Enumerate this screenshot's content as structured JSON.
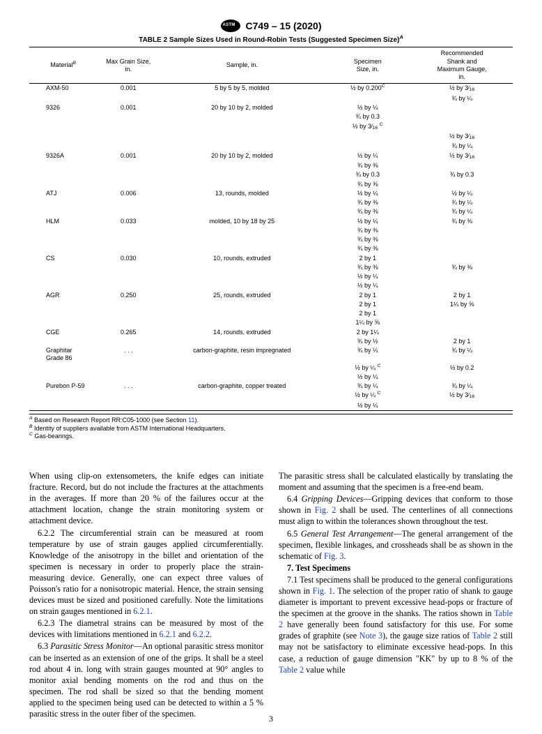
{
  "doc": {
    "id": "C749 – 15 (2020)",
    "page_number": "3"
  },
  "table": {
    "title_html": "TABLE 2 Sample Sizes Used in Round-Robin Tests (Suggested Specimen Size)<sup><i>A</i></sup>",
    "headers": {
      "c1_html": "Material<sup><i>B</i></sup>",
      "c2": "Max Grain Size,\nin.",
      "c3": "Sample, in.",
      "c4": "Specimen\nSize, in.",
      "c5": "Recommended\nShank and\nMaximum Gauge,\nin."
    },
    "rows": [
      {
        "m": "AXM-50",
        "g": "0.001",
        "s": "5 by 5 by 5, molded",
        "sz": [
          "½ by 0.200<sup><i>C</i></sup>"
        ],
        "r": [
          "½ by 3⁄<span class=\"sub16\">16</span>",
          "¾ by ¼"
        ]
      },
      {
        "m": "9326",
        "g": "0.001",
        "s": "20 by 10 by 2, molded",
        "sz": [
          "½ by ¼",
          "¾ by 0.3",
          "½ by 3⁄<span class=\"sub16\">16</span> <sup><i>C</i></sup>"
        ],
        "r": [
          "",
          "",
          "",
          "½ by 3⁄<span class=\"sub16\">16</span>",
          "¾ by ¼"
        ]
      },
      {
        "m": "9326A",
        "g": "0.001",
        "s": "20 by 10 by 2, molded",
        "sz": [
          "½ by ¼",
          "¾ by ⅜",
          "¾ by 0.3",
          "¾ by ⅜"
        ],
        "r": [
          "½ by 3⁄<span class=\"sub16\">16</span>",
          "",
          "¾ by 0.3"
        ]
      },
      {
        "m": "ATJ",
        "g": "0.006",
        "s": "13, rounds, molded",
        "sz": [
          "½ by ¼",
          "¾ by ⅜",
          "¾ by ⅜"
        ],
        "r": [
          "½ by ¼",
          "¾ by ¼",
          "¾ by ¼"
        ]
      },
      {
        "m": "HLM",
        "g": "0.033",
        "s": "molded, 10 by 18 by 25",
        "sz": [
          "½ by ¼",
          "¾ by ⅜",
          "¾ by ⅜",
          "¾ by ⅜"
        ],
        "r": [
          "¾ by ⅜"
        ]
      },
      {
        "m": "CS",
        "g": "0.030",
        "s": "10, rounds, extruded",
        "sz": [
          "2 by 1",
          "¾ by ⅜",
          "½ by ¼",
          "½ by ¼"
        ],
        "r": [
          "",
          "¾ by ⅜"
        ]
      },
      {
        "m": "AGR",
        "g": "0.250",
        "s": "25, rounds, extruded",
        "sz": [
          "2 by 1",
          "2 by 1",
          "2 by 1",
          "1¼ by ⅝"
        ],
        "r": [
          "2 by 1",
          "1¼ by ⅝"
        ]
      },
      {
        "m": "CGE",
        "g": "0.265",
        "s": "14, rounds, extruded",
        "sz": [
          "2 by 1¼",
          "¾ by ½"
        ],
        "r": [
          "",
          "2 by 1"
        ]
      },
      {
        "m": "Graphitar\nGrade 86",
        "g": ". . .",
        "s": "carbon-graphite, resin impregnated",
        "sz": [
          "¾ by ¼",
          "½ by ¼ <sup><i>C</i></sup>",
          "½ by ¼"
        ],
        "r": [
          "¾ by ¼",
          "½ by 0.2"
        ]
      },
      {
        "m": "Purebon P-59",
        "g": ". . .",
        "s": "carbon-graphite, copper treated",
        "sz": [
          "¾ by ¼",
          "½ by ¼ <sup><i>C</i></sup>",
          "½ by ¼"
        ],
        "r": [
          "¾ by ¼",
          "½ by 3⁄<span class=\"sub16\">16</span>"
        ]
      }
    ],
    "footnotes": [
      "<sup><i>A</i></sup> Based on Research Report RR:C05-1000 (see Section <span class=\"xref\">11</span>).",
      "<sup><i>B</i></sup> Identity of suppliers available from ASTM International Headquarters.",
      "<sup><i>C</i></sup> Gas-bearings."
    ]
  },
  "body": {
    "left": [
      {
        "cls": "no-indent",
        "html": "When using clip-on extensometers, the knife edges can initiate fracture. Record, but do not include the fractures at the attachments in the averages. If more than 20 % of the failures occur at the attachment location, change the strain monitoring system or attachment device."
      },
      {
        "html": "6.2.2 The circumferential strain can be measured at room temperature by use of strain gauges applied circumferentially. Knowledge of the anisotropy in the billet and orientation of the specimen is necessary in order to properly place the strain-measuring device. Generally, one can expect three values of Poisson's ratio for a nonisotropic material. Hence, the strain sensing devices must be sized and positioned carefully. Note the limitations on strain gauges mentioned in <span class=\"xref\">6.2.1</span>."
      },
      {
        "html": "6.2.3 The diametral strains can be measured by most of the devices with limitations mentioned in <span class=\"xref\">6.2.1</span> and <span class=\"xref\">6.2.2</span>."
      },
      {
        "html": "6.3 <span class=\"ital\">Parasitic Stress Monitor</span>—An optional parasitic stress monitor can be inserted as an extension of one of the grips. It shall be a steel rod about 4 in. long with strain gauges mounted at 90° angles to monitor axial bending moments on the rod and thus on the specimen. The rod shall be sized so that the bending moment applied to the specimen being used can be detected to within a 5 % parasitic stress in the outer fiber of the specimen."
      }
    ],
    "right": [
      {
        "cls": "no-indent",
        "html": "The parasitic stress shall be calculated elastically by translating the moment and assuming that the specimen is a free-end beam."
      },
      {
        "html": "6.4 <span class=\"ital\">Gripping Devices</span>—Gripping devices that conform to those shown in <span class=\"xref\">Fig. 2</span> shall be used. The centerlines of all connections must align to within the tolerances shown throughout the test."
      },
      {
        "html": "6.5 <span class=\"ital\">General Test Arrangement</span>—The general arrangement of the specimen, flexible linkages, and crossheads shall be as shown in the schematic of <span class=\"xref\">Fig. 3</span>."
      },
      {
        "cls": "sec-head",
        "html": "7. Test Specimens"
      },
      {
        "html": "7.1 Test specimens shall be produced to the general configurations shown in <span class=\"xref\">Fig. 1</span>. The selection of the proper ratio of shank to gauge diameter is important to prevent excessive head-pops or fracture of the specimen at the groove in the shanks. The ratios shown in <span class=\"xref\">Table 2</span> have generally been found satisfactory for this use. For some grades of graphite (see <span class=\"xref\">Note 3</span>), the gauge size ratios of <span class=\"xref\">Table 2</span> still may not be satisfactory to eliminate excessive head-pops. In this case, a reduction of gauge dimension \"KK\" by up to 8 % of the <span class=\"xref\">Table 2</span> value while"
      }
    ]
  }
}
